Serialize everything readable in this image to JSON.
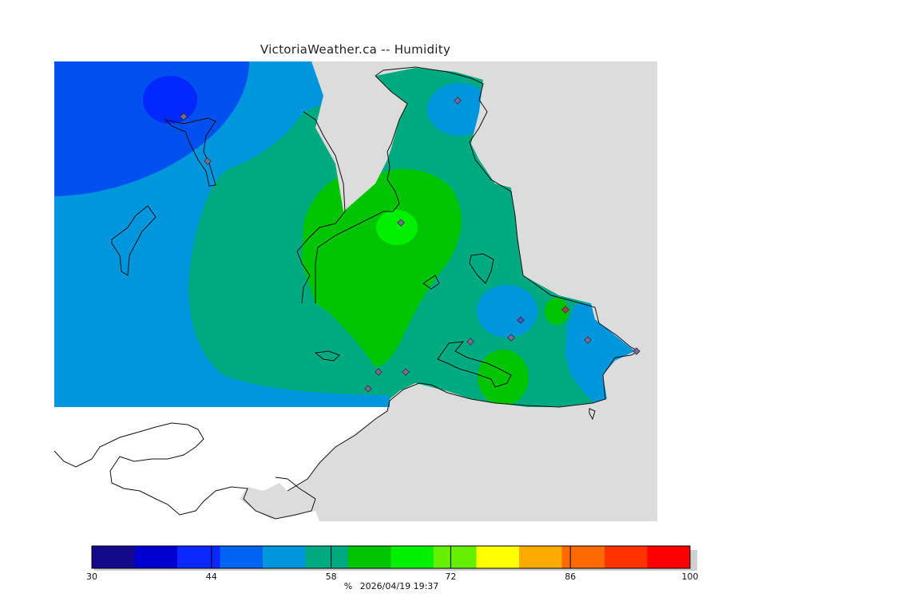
{
  "title": "VictoriaWeather.ca -- Humidity",
  "legend": {
    "unit": "%",
    "timestamp": "2026/04/19 19:37",
    "tick_labels": [
      "30",
      "44",
      "58",
      "72",
      "86",
      "100"
    ],
    "colors": [
      "#120a8a",
      "#0000cf",
      "#0a28ff",
      "#0064f2",
      "#0096de",
      "#00aa80",
      "#00c400",
      "#00f000",
      "#64f000",
      "#ffff00",
      "#ffaa00",
      "#ff6a00",
      "#ff3200",
      "#ff0000"
    ]
  },
  "map": {
    "colors": {
      "very_low": "#0028ff",
      "low": "#0050f0",
      "mid_low": "#0096de",
      "mid": "#00aa80",
      "mid_high": "#00c400",
      "high": "#00f000",
      "land_outside": "#dcdcdc",
      "water_outside": "#ffffff"
    },
    "station_marker_color": "#7a6a9a"
  }
}
